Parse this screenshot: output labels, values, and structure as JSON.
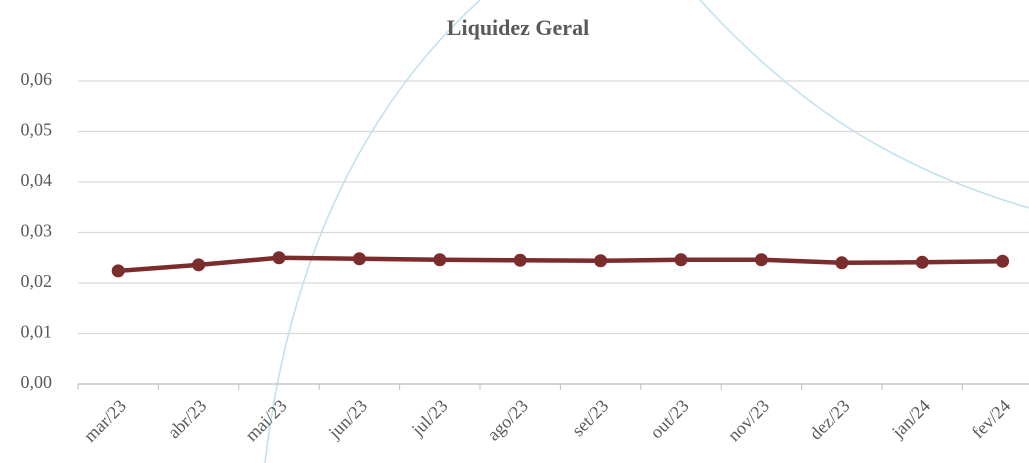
{
  "chart_data": {
    "type": "line",
    "title": "Liquidez Geral",
    "categories": [
      "mar/23",
      "abr/23",
      "mai/23",
      "jun/23",
      "jul/23",
      "ago/23",
      "set/23",
      "out/23",
      "nov/23",
      "dez/23",
      "jan/24",
      "fev/24"
    ],
    "series": [
      {
        "name": "Liquidez Geral",
        "color": "#7b2c2c",
        "values": [
          0.0224,
          0.0236,
          0.025,
          0.0248,
          0.0246,
          0.0245,
          0.0244,
          0.0246,
          0.0246,
          0.024,
          0.0241,
          0.0243
        ]
      }
    ],
    "ylim": [
      0,
      0.06
    ],
    "yticks": [
      {
        "value": 0,
        "label": "0,00"
      },
      {
        "value": 0.01,
        "label": "0,01"
      },
      {
        "value": 0.02,
        "label": "0,02"
      },
      {
        "value": 0.03,
        "label": "0,03"
      },
      {
        "value": 0.04,
        "label": "0,04"
      },
      {
        "value": 0.05,
        "label": "0,05"
      },
      {
        "value": 0.06,
        "label": "0,06"
      }
    ],
    "grid": true
  }
}
